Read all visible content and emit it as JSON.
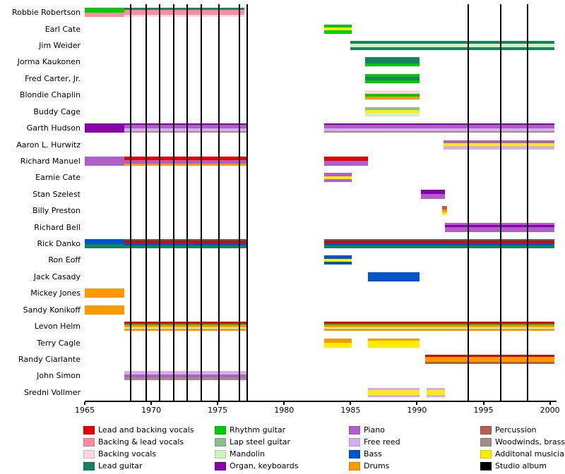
{
  "chart_data": {
    "type": "timeline",
    "title": "",
    "x_axis": {
      "min": 1965,
      "max": 2000.5,
      "ticks": [
        1965,
        1970,
        1975,
        1980,
        1985,
        1990,
        1995,
        2000
      ]
    },
    "palette": {
      "lead_and_backing_vocals": "#e60000",
      "backing_and_lead_vocals": "#ff8c9e",
      "backing_vocals": "#ffd6de",
      "lead_guitar": "#15835f",
      "rhythm_guitar": "#00cc00",
      "lap_steel_guitar": "#8fbc8f",
      "mandolin": "#d0f0c0",
      "organ_keyboards": "#8800aa",
      "piano": "#b05fc8",
      "free_reed": "#d4aee8",
      "bass": "#0055cc",
      "drums": "#ff9900",
      "percussion": "#b85c50",
      "woodwinds_brass": "#a58a8a",
      "additional_musician": "#ffee00",
      "studio_album": "#000000"
    },
    "legend": [
      {
        "label": "Lead and backing vocals",
        "color": "lead_and_backing_vocals"
      },
      {
        "label": "Backing & lead vocals",
        "color": "backing_and_lead_vocals"
      },
      {
        "label": "Backing vocals",
        "color": "backing_vocals"
      },
      {
        "label": "Lead guitar",
        "color": "lead_guitar"
      },
      {
        "label": "Rhythm guitar",
        "color": "rhythm_guitar"
      },
      {
        "label": "Lap steel guitar",
        "color": "lap_steel_guitar"
      },
      {
        "label": "Mandolin",
        "color": "mandolin"
      },
      {
        "label": "Organ, keyboards",
        "color": "organ_keyboards"
      },
      {
        "label": "Piano",
        "color": "piano"
      },
      {
        "label": "Free reed",
        "color": "free_reed"
      },
      {
        "label": "Bass",
        "color": "bass"
      },
      {
        "label": "Drums",
        "color": "drums"
      },
      {
        "label": "Percussion",
        "color": "percussion"
      },
      {
        "label": "Woodwinds, brass",
        "color": "woodwinds_brass"
      },
      {
        "label": "Additonal musician",
        "color": "additional_musician"
      },
      {
        "label": "Studio album",
        "color": "studio_album"
      }
    ],
    "studio_albums": [
      1968.45,
      1969.6,
      1970.65,
      1971.7,
      1972.7,
      1973.75,
      1975.1,
      1976.65,
      1977.2,
      1993.85,
      1996.3,
      1998.3
    ],
    "members": [
      {
        "name": "Robbie Robertson",
        "segments": [
          {
            "start": 1965.0,
            "end": 1968.0,
            "stripes": [
              "rhythm_guitar",
              "backing_and_lead_vocals"
            ],
            "weights": [
              1,
              1
            ]
          },
          {
            "start": 1968.0,
            "end": 1977.0,
            "stripes": [
              "lead_guitar",
              "backing_and_lead_vocals",
              "backing_vocals"
            ],
            "weights": [
              1,
              2,
              1
            ]
          }
        ]
      },
      {
        "name": "Earl Cate",
        "segments": [
          {
            "start": 1983.0,
            "end": 1985.1,
            "stripes": [
              "rhythm_guitar",
              "additional_musician",
              "rhythm_guitar"
            ],
            "weights": [
              1,
              1,
              1
            ]
          }
        ]
      },
      {
        "name": "Jim Weider",
        "segments": [
          {
            "start": 1985.0,
            "end": 2000.35,
            "stripes": [
              "lead_guitar",
              "mandolin",
              "lead_guitar"
            ],
            "weights": [
              1,
              1,
              1
            ]
          }
        ]
      },
      {
        "name": "Jorma Kaukonen",
        "segments": [
          {
            "start": 1986.1,
            "end": 1990.2,
            "stripes": [
              "lead_guitar",
              "rhythm_guitar"
            ],
            "weights": [
              2,
              1
            ]
          }
        ]
      },
      {
        "name": "Fred Carter, Jr.",
        "segments": [
          {
            "start": 1986.1,
            "end": 1990.2,
            "stripes": [
              "rhythm_guitar",
              "lead_guitar",
              "rhythm_guitar"
            ],
            "weights": [
              1,
              1,
              1
            ]
          }
        ]
      },
      {
        "name": "Blondie Chaplin",
        "segments": [
          {
            "start": 1986.1,
            "end": 1990.2,
            "stripes": [
              "backing_vocals",
              "rhythm_guitar",
              "drums"
            ],
            "weights": [
              1,
              1,
              1
            ]
          }
        ]
      },
      {
        "name": "Buddy Cage",
        "segments": [
          {
            "start": 1986.1,
            "end": 1990.2,
            "stripes": [
              "lap_steel_guitar",
              "additional_musician",
              "mandolin"
            ],
            "weights": [
              1,
              1,
              1
            ]
          }
        ]
      },
      {
        "name": "Garth Hudson",
        "segments": [
          {
            "start": 1965.0,
            "end": 1968.0,
            "stripes": [
              "organ_keyboards"
            ],
            "weights": [
              1
            ]
          },
          {
            "start": 1968.0,
            "end": 1977.2,
            "stripes": [
              "organ_keyboards",
              "piano",
              "free_reed",
              "woodwinds_brass"
            ],
            "weights": [
              1,
              2,
              2,
              1
            ]
          },
          {
            "start": 1983.0,
            "end": 2000.35,
            "stripes": [
              "organ_keyboards",
              "piano",
              "free_reed",
              "woodwinds_brass"
            ],
            "weights": [
              1,
              2,
              2,
              1
            ]
          }
        ]
      },
      {
        "name": "Aaron L. Hurwitz",
        "segments": [
          {
            "start": 1992.0,
            "end": 2000.35,
            "stripes": [
              "piano",
              "additional_musician",
              "free_reed"
            ],
            "weights": [
              1,
              1,
              1
            ]
          }
        ]
      },
      {
        "name": "Richard Manuel",
        "segments": [
          {
            "start": 1965.0,
            "end": 1968.0,
            "stripes": [
              "piano"
            ],
            "weights": [
              1
            ]
          },
          {
            "start": 1968.0,
            "end": 1977.2,
            "stripes": [
              "lead_and_backing_vocals",
              "piano",
              "drums"
            ],
            "weights": [
              2,
              2,
              1
            ]
          },
          {
            "start": 1983.0,
            "end": 1986.3,
            "stripes": [
              "lead_and_backing_vocals",
              "piano"
            ],
            "weights": [
              1,
              1
            ]
          }
        ]
      },
      {
        "name": "Earnie Cate",
        "segments": [
          {
            "start": 1983.0,
            "end": 1985.1,
            "stripes": [
              "piano",
              "additional_musician",
              "piano"
            ],
            "weights": [
              1,
              1,
              1
            ]
          }
        ]
      },
      {
        "name": "Stan Szelest",
        "segments": [
          {
            "start": 1990.3,
            "end": 1992.1,
            "stripes": [
              "organ_keyboards",
              "piano"
            ],
            "weights": [
              1,
              1
            ]
          }
        ]
      },
      {
        "name": "Billy Preston",
        "segments": [
          {
            "start": 1991.9,
            "end": 1992.25,
            "stripes": [
              "percussion",
              "drums",
              "additional_musician"
            ],
            "weights": [
              1,
              1,
              1
            ]
          }
        ]
      },
      {
        "name": "Richard Bell",
        "segments": [
          {
            "start": 1992.1,
            "end": 2000.35,
            "stripes": [
              "piano",
              "organ_keyboards",
              "piano"
            ],
            "weights": [
              1,
              1,
              2
            ]
          }
        ]
      },
      {
        "name": "Rick Danko",
        "segments": [
          {
            "start": 1965.0,
            "end": 1968.0,
            "stripes": [
              "bass",
              "lead_guitar"
            ],
            "weights": [
              1,
              1
            ]
          },
          {
            "start": 1968.0,
            "end": 1977.2,
            "stripes": [
              "lead_guitar",
              "lead_and_backing_vocals",
              "bass",
              "lead_guitar"
            ],
            "weights": [
              1,
              2,
              2,
              2
            ]
          },
          {
            "start": 1983.0,
            "end": 2000.35,
            "stripes": [
              "lead_guitar",
              "lead_and_backing_vocals",
              "bass",
              "lead_guitar"
            ],
            "weights": [
              1,
              2,
              2,
              2
            ]
          }
        ]
      },
      {
        "name": "Ron Eoff",
        "segments": [
          {
            "start": 1983.0,
            "end": 1985.1,
            "stripes": [
              "bass",
              "additional_musician",
              "bass"
            ],
            "weights": [
              1,
              1,
              1
            ]
          }
        ]
      },
      {
        "name": "Jack Casady",
        "segments": [
          {
            "start": 1986.3,
            "end": 1990.2,
            "stripes": [
              "bass"
            ],
            "weights": [
              1
            ]
          }
        ]
      },
      {
        "name": "Mickey Jones",
        "segments": [
          {
            "start": 1965.0,
            "end": 1968.0,
            "stripes": [
              "drums"
            ],
            "weights": [
              1
            ]
          }
        ]
      },
      {
        "name": "Sandy Konikoff",
        "segments": [
          {
            "start": 1965.0,
            "end": 1968.0,
            "stripes": [
              "drums"
            ],
            "weights": [
              1
            ]
          }
        ]
      },
      {
        "name": "Levon Helm",
        "segments": [
          {
            "start": 1968.0,
            "end": 1977.2,
            "stripes": [
              "lead_and_backing_vocals",
              "rhythm_guitar",
              "drums",
              "mandolin",
              "drums"
            ],
            "weights": [
              2,
              1,
              2,
              1,
              2
            ]
          },
          {
            "start": 1983.0,
            "end": 2000.35,
            "stripes": [
              "lead_and_backing_vocals",
              "rhythm_guitar",
              "drums",
              "mandolin",
              "drums"
            ],
            "weights": [
              2,
              1,
              2,
              1,
              2
            ]
          }
        ]
      },
      {
        "name": "Terry Cagle",
        "segments": [
          {
            "start": 1983.0,
            "end": 1985.1,
            "stripes": [
              "drums",
              "additional_musician"
            ],
            "weights": [
              1,
              1
            ]
          },
          {
            "start": 1986.3,
            "end": 1990.2,
            "stripes": [
              "drums",
              "additional_musician"
            ],
            "weights": [
              1,
              3
            ]
          }
        ]
      },
      {
        "name": "Randy Ciarlante",
        "segments": [
          {
            "start": 1990.6,
            "end": 2000.35,
            "stripes": [
              "lead_and_backing_vocals",
              "drums",
              "percussion"
            ],
            "weights": [
              1,
              2,
              1
            ]
          }
        ]
      },
      {
        "name": "John Simon",
        "segments": [
          {
            "start": 1968.0,
            "end": 1977.2,
            "stripes": [
              "free_reed",
              "piano",
              "woodwinds_brass"
            ],
            "weights": [
              1,
              1,
              1
            ]
          }
        ]
      },
      {
        "name": "Sredni Vollmer",
        "segments": [
          {
            "start": 1986.3,
            "end": 1990.2,
            "stripes": [
              "free_reed",
              "additional_musician",
              "free_reed"
            ],
            "weights": [
              1,
              2,
              1
            ]
          },
          {
            "start": 1990.7,
            "end": 1992.1,
            "stripes": [
              "free_reed",
              "additional_musician",
              "free_reed"
            ],
            "weights": [
              1,
              2,
              1
            ]
          }
        ]
      }
    ]
  }
}
